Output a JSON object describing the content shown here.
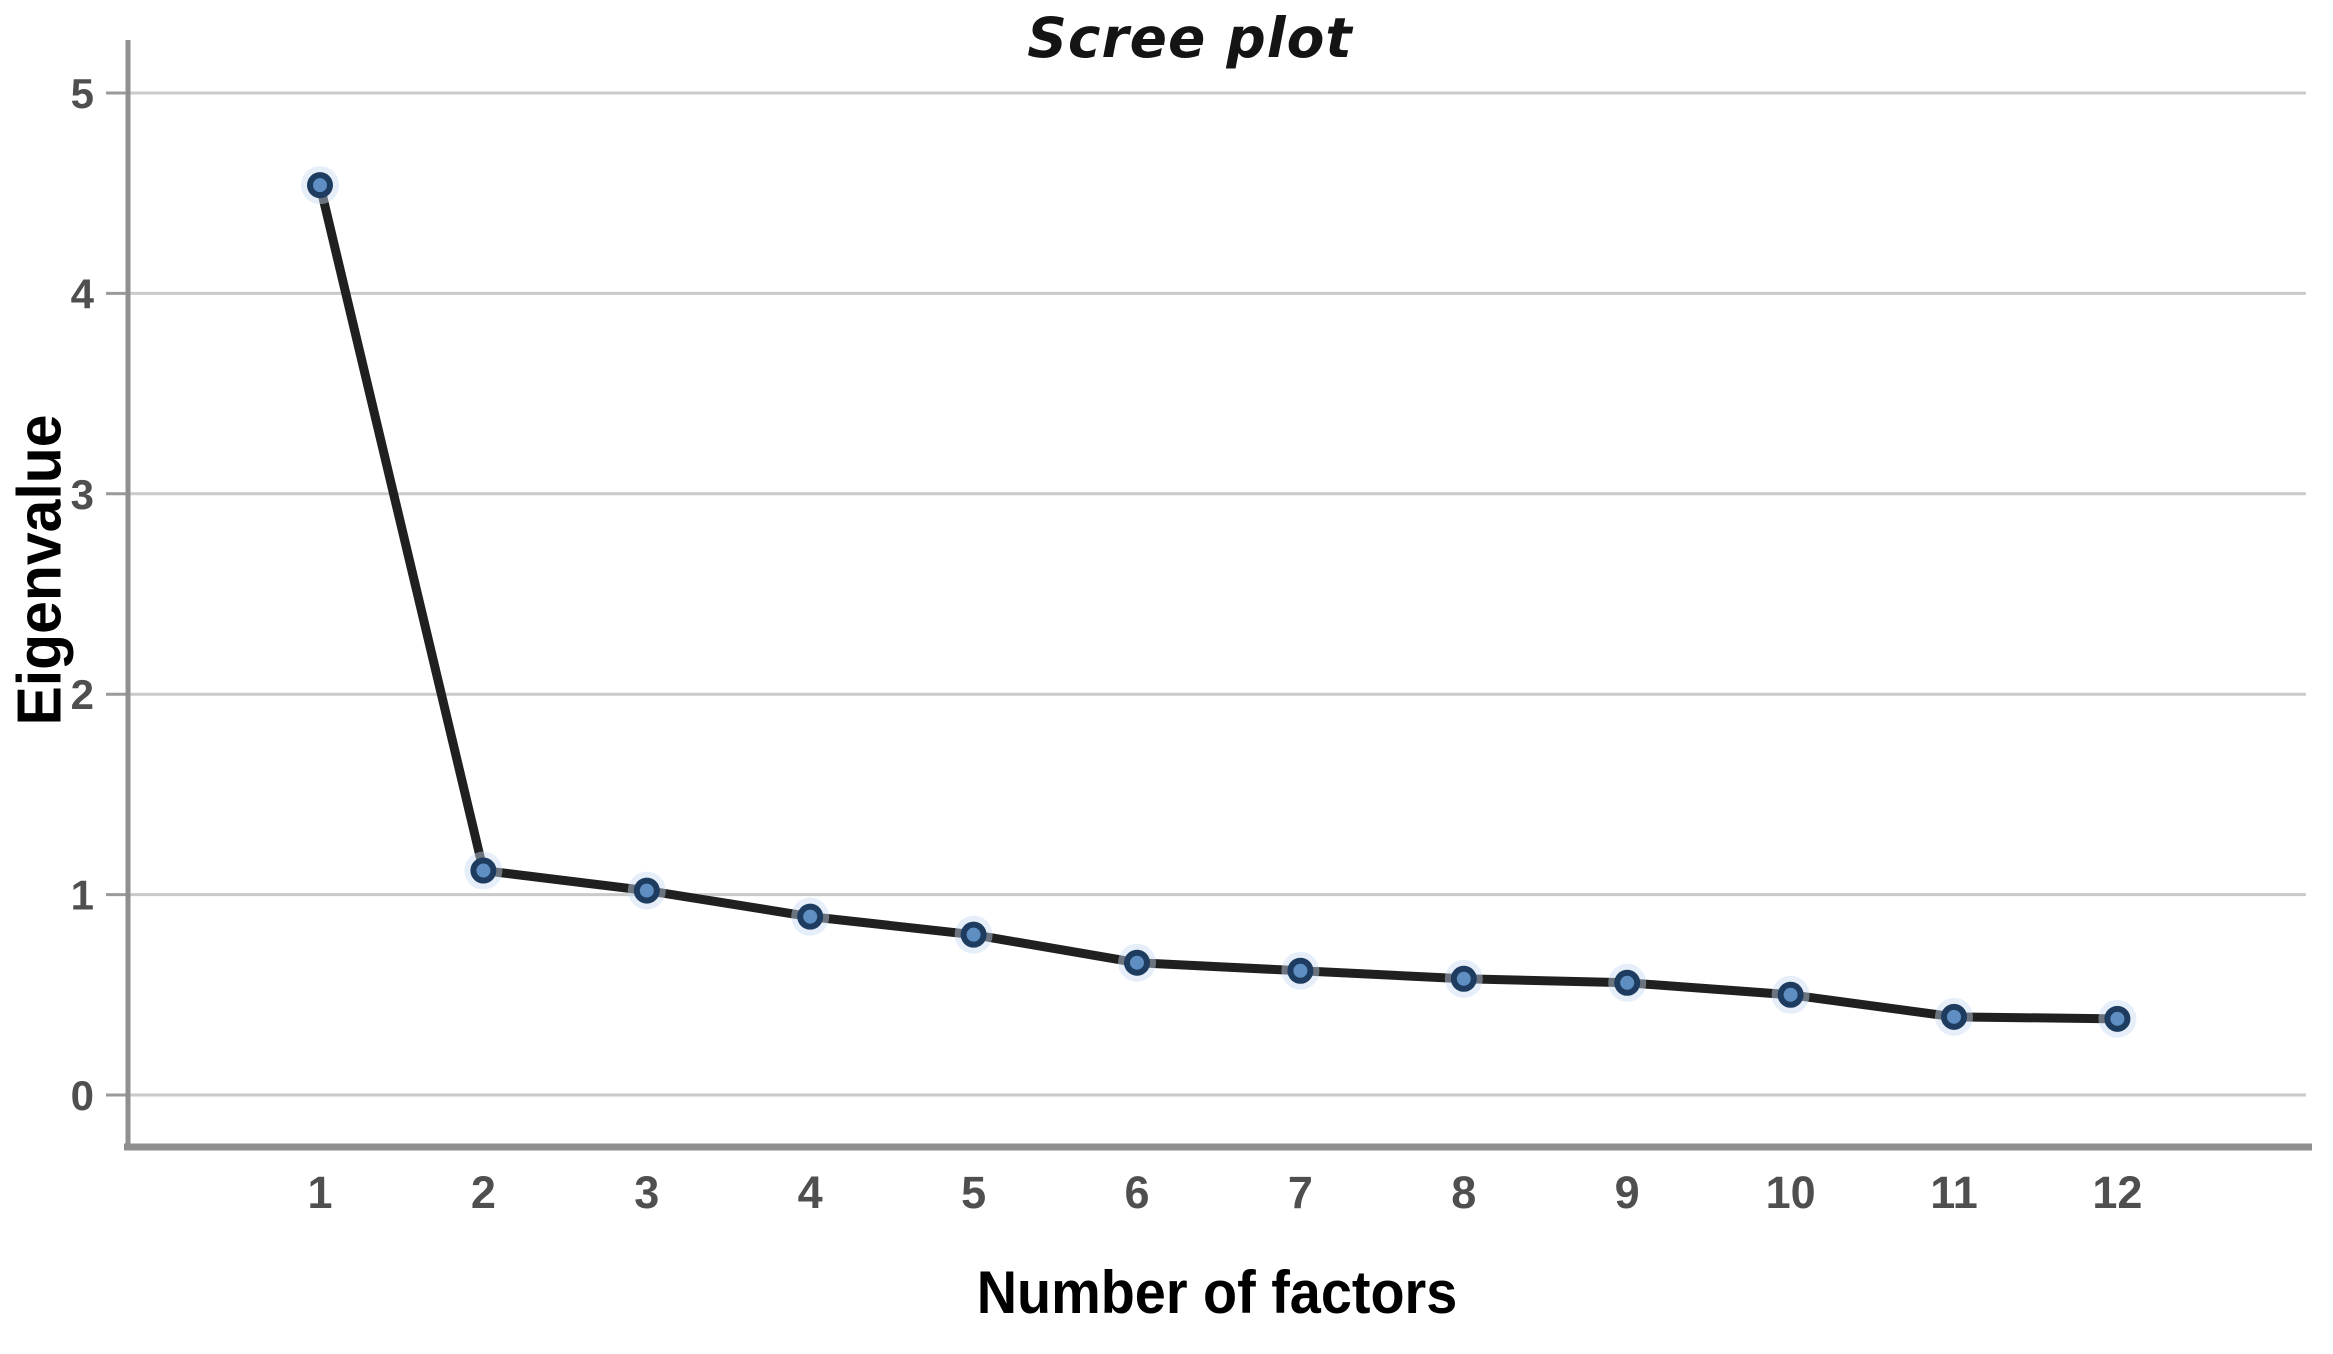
{
  "chart_data": {
    "type": "line",
    "title": "Scree plot",
    "xlabel": "Number of factors",
    "ylabel": "Eigenvalue",
    "categories": [
      "1",
      "2",
      "3",
      "4",
      "5",
      "6",
      "7",
      "8",
      "9",
      "10",
      "11",
      "12"
    ],
    "series": [
      {
        "name": "Eigenvalue",
        "values": [
          4.54,
          1.12,
          1.02,
          0.89,
          0.8,
          0.66,
          0.62,
          0.58,
          0.56,
          0.5,
          0.39,
          0.38
        ]
      }
    ],
    "y_ticks": [
      "0",
      "1",
      "2",
      "3",
      "4",
      "5"
    ],
    "y_tick_values": [
      0,
      1,
      2,
      3,
      4,
      5
    ],
    "ylim": [
      -0.26,
      5.26
    ],
    "grid": "horizontal",
    "legend": "none",
    "colors": {
      "line": "#202020",
      "marker_fill": "#5e8ec2",
      "marker_stroke": "#1e3c5f",
      "marker_halo": "#c7dcf2",
      "gridline": "#cacaca",
      "axis": "#8f8f8f",
      "tick": "#9a9a9a",
      "tick_label": "#4f4f4f"
    }
  }
}
